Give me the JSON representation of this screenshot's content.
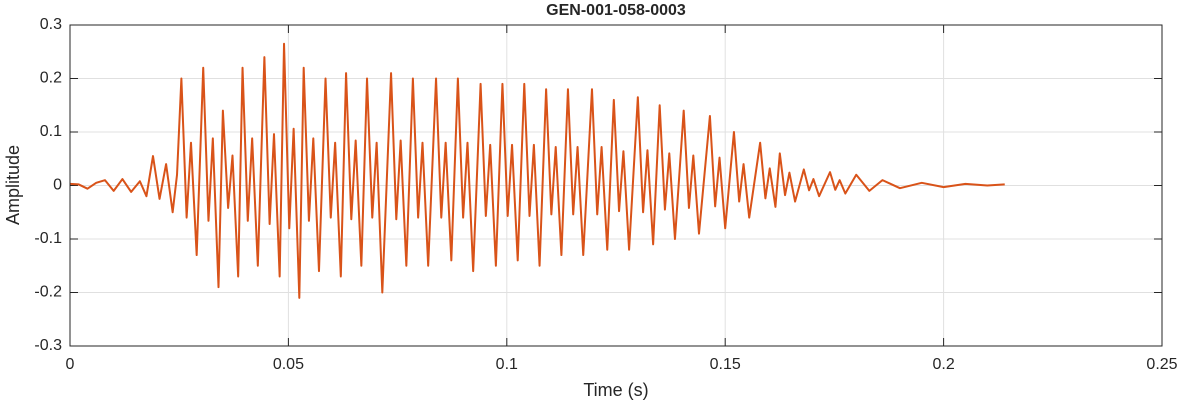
{
  "chart_data": {
    "type": "line",
    "title": "GEN-001-058-0003",
    "x_label": "Time (s)",
    "y_label": "Amplitude",
    "xlim": [
      0,
      0.25
    ],
    "xticks": [
      0,
      0.05,
      0.1,
      0.15,
      0.2,
      0.25
    ],
    "ylim": [
      -0.3,
      0.3
    ],
    "yticks": [
      -0.3,
      -0.2,
      -0.1,
      0,
      0.1,
      0.2,
      0.3
    ],
    "grid": true,
    "series": [
      {
        "color": "#d95319",
        "x": [
          0,
          0.002,
          0.004,
          0.006,
          0.008,
          0.01,
          0.012,
          0.014,
          0.016,
          0.0175,
          0.019,
          0.0205,
          0.022,
          0.0235,
          0.0245,
          0.0255,
          0.0267,
          0.0277,
          0.029,
          0.0305,
          0.0317,
          0.0327,
          0.034,
          0.035,
          0.0362,
          0.0372,
          0.0385,
          0.0395,
          0.0407,
          0.0417,
          0.043,
          0.0445,
          0.0457,
          0.0467,
          0.048,
          0.049,
          0.0502,
          0.0512,
          0.0525,
          0.0535,
          0.0547,
          0.0557,
          0.057,
          0.0585,
          0.0597,
          0.0607,
          0.062,
          0.0632,
          0.0644,
          0.0654,
          0.0667,
          0.068,
          0.0692,
          0.0702,
          0.0715,
          0.0735,
          0.0747,
          0.0757,
          0.077,
          0.0785,
          0.0797,
          0.0807,
          0.082,
          0.0838,
          0.085,
          0.086,
          0.0873,
          0.0888,
          0.09,
          0.091,
          0.0923,
          0.094,
          0.0952,
          0.0962,
          0.0975,
          0.099,
          0.1002,
          0.1012,
          0.1025,
          0.104,
          0.1052,
          0.1062,
          0.1075,
          0.109,
          0.1102,
          0.1112,
          0.1125,
          0.114,
          0.1152,
          0.1162,
          0.1175,
          0.1195,
          0.1207,
          0.1217,
          0.123,
          0.1245,
          0.1257,
          0.1267,
          0.128,
          0.13,
          0.1312,
          0.1322,
          0.1335,
          0.135,
          0.1362,
          0.1372,
          0.1385,
          0.1405,
          0.1417,
          0.1427,
          0.144,
          0.1465,
          0.1477,
          0.1487,
          0.15,
          0.152,
          0.1532,
          0.1542,
          0.1555,
          0.158,
          0.1592,
          0.1602,
          0.1615,
          0.1625,
          0.1637,
          0.1647,
          0.166,
          0.168,
          0.1692,
          0.1702,
          0.1715,
          0.174,
          0.1752,
          0.1762,
          0.1775,
          0.18,
          0.183,
          0.186,
          0.19,
          0.195,
          0.2,
          0.205,
          0.21,
          0.214
        ],
        "values": [
          0.003,
          0.002,
          -0.006,
          0.005,
          0.01,
          -0.01,
          0.012,
          -0.012,
          0.008,
          -0.02,
          0.055,
          -0.025,
          0.04,
          -0.05,
          0.02,
          0.2,
          -0.06,
          0.08,
          -0.13,
          0.22,
          -0.066,
          0.088,
          -0.19,
          0.14,
          -0.042,
          0.056,
          -0.17,
          0.22,
          -0.066,
          0.088,
          -0.15,
          0.24,
          -0.072,
          0.096,
          -0.17,
          0.265,
          -0.08,
          0.106,
          -0.21,
          0.22,
          -0.066,
          0.088,
          -0.16,
          0.2,
          -0.06,
          0.08,
          -0.17,
          0.21,
          -0.063,
          0.084,
          -0.15,
          0.2,
          -0.06,
          0.08,
          -0.2,
          0.21,
          -0.063,
          0.084,
          -0.15,
          0.2,
          -0.06,
          0.08,
          -0.15,
          0.2,
          -0.06,
          0.08,
          -0.14,
          0.2,
          -0.06,
          0.08,
          -0.16,
          0.19,
          -0.057,
          0.076,
          -0.15,
          0.19,
          -0.057,
          0.076,
          -0.14,
          0.19,
          -0.057,
          0.076,
          -0.15,
          0.18,
          -0.054,
          0.072,
          -0.13,
          0.18,
          -0.054,
          0.072,
          -0.13,
          0.18,
          -0.054,
          0.072,
          -0.12,
          0.16,
          -0.048,
          0.064,
          -0.12,
          0.165,
          -0.05,
          0.066,
          -0.11,
          0.15,
          -0.045,
          0.06,
          -0.1,
          0.14,
          -0.042,
          0.056,
          -0.09,
          0.13,
          -0.039,
          0.052,
          -0.08,
          0.1,
          -0.03,
          0.04,
          -0.06,
          0.08,
          -0.024,
          0.032,
          -0.04,
          0.06,
          -0.018,
          0.024,
          -0.03,
          0.03,
          -0.009,
          0.012,
          -0.02,
          0.025,
          -0.008,
          0.01,
          -0.015,
          0.02,
          -0.01,
          0.01,
          -0.005,
          0.005,
          -0.003,
          0.003,
          0,
          0.002
        ]
      }
    ]
  }
}
